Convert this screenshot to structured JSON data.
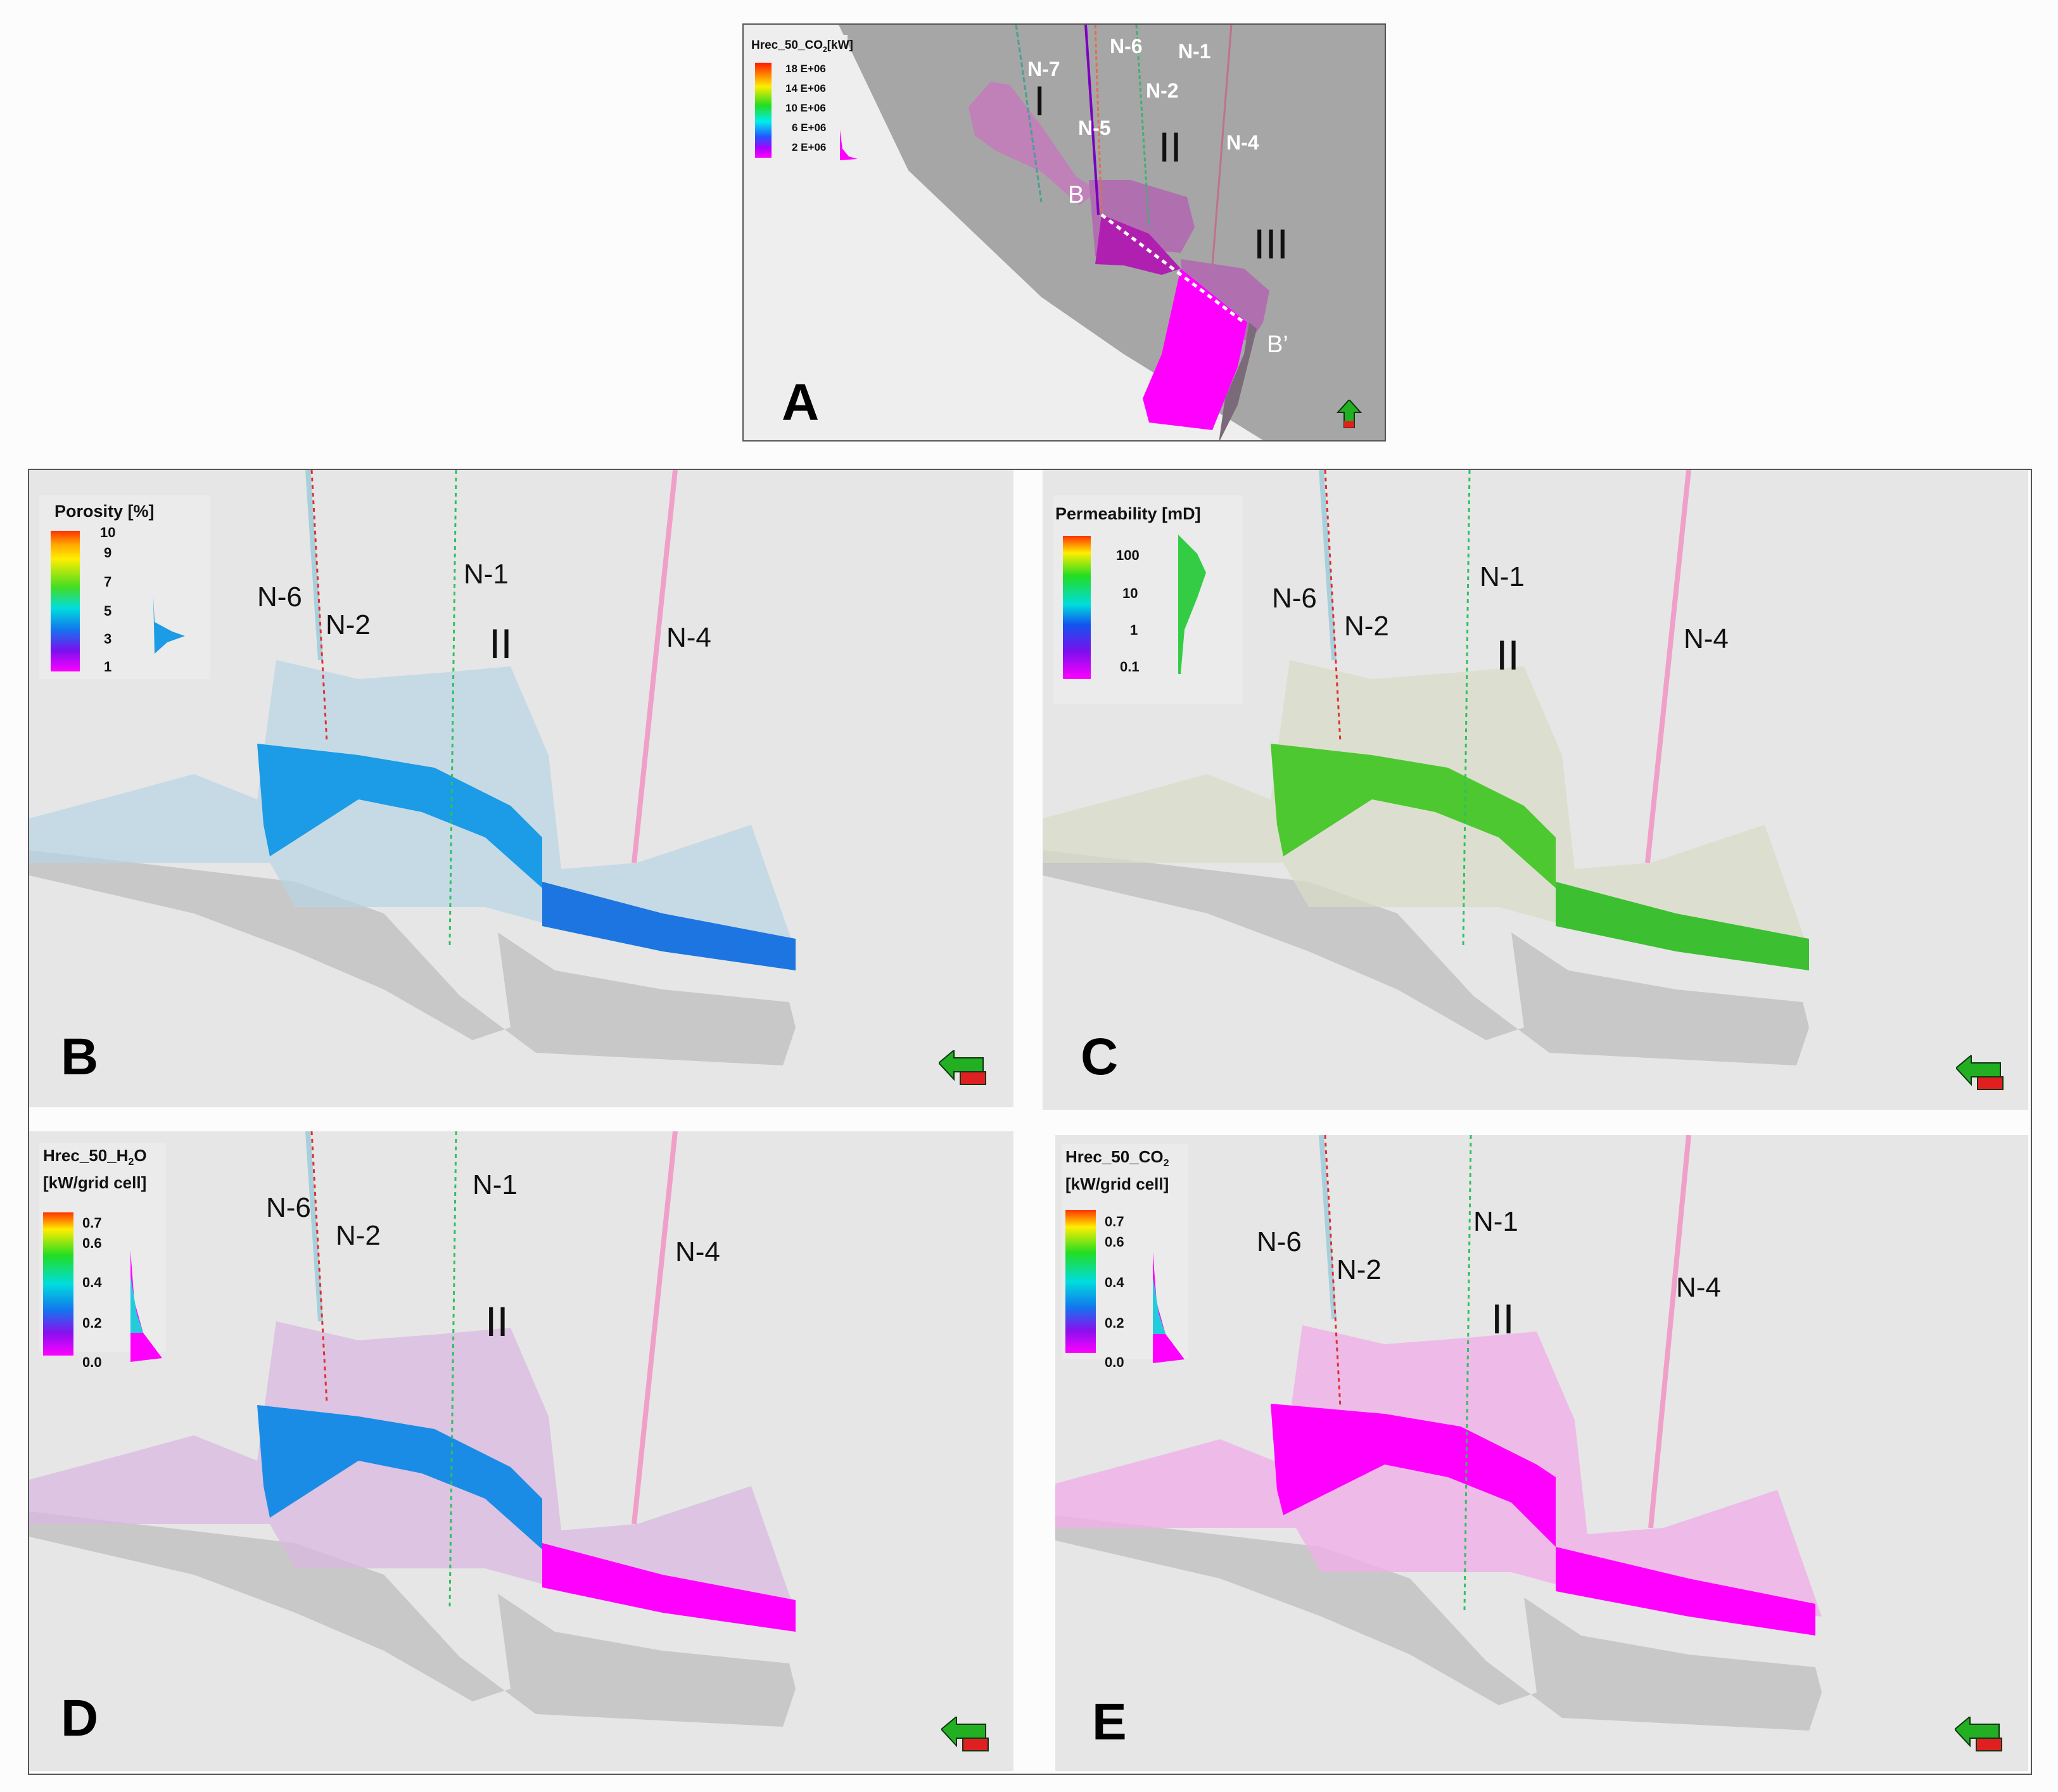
{
  "panels": {
    "A": {
      "letter": "A",
      "legend": {
        "title_pre": "Hrec_50_CO",
        "title_sub": "2",
        "title_post": "[kW]",
        "ticks": [
          "18 E+06",
          "14 E+06",
          "10 E+06",
          "6 E+06",
          "2 E+06"
        ]
      },
      "wells": [
        "N-7",
        "N-6",
        "N-1",
        "N-2",
        "N-5",
        "N-4"
      ],
      "zones": [
        "I",
        "II",
        "III"
      ],
      "section_start": "B",
      "section_end": "B’"
    },
    "B": {
      "letter": "B",
      "legend": {
        "title": "Porosity [%]",
        "ticks": [
          "10",
          "9",
          "7",
          "5",
          "3",
          "1"
        ]
      },
      "wells": [
        "N-6",
        "N-2",
        "N-1",
        "N-4"
      ],
      "zone": "II"
    },
    "C": {
      "letter": "C",
      "legend": {
        "title": "Permeability [mD]",
        "ticks": [
          "100",
          "10",
          "1",
          "0.1"
        ]
      },
      "wells": [
        "N-6",
        "N-2",
        "N-1",
        "N-4"
      ],
      "zone": "II"
    },
    "D": {
      "letter": "D",
      "legend": {
        "title_pre": "Hrec_50_H",
        "title_sub": "2",
        "title_post": "O",
        "title_line2": "[kW/grid cell]",
        "ticks": [
          "0.7",
          "0.6",
          "0.4",
          "0.2",
          "0.0"
        ]
      },
      "wells": [
        "N-6",
        "N-2",
        "N-1",
        "N-4"
      ],
      "zone": "II"
    },
    "E": {
      "letter": "E",
      "legend": {
        "title_pre": "Hrec_50_CO",
        "title_sub": "2",
        "title_post": "",
        "title_line2": "[kW/grid cell]",
        "ticks": [
          "0.7",
          "0.6",
          "0.4",
          "0.2",
          "0.0"
        ]
      },
      "wells": [
        "N-6",
        "N-2",
        "N-1",
        "N-4"
      ],
      "zone": "II"
    }
  },
  "colors": {
    "panel_background": "#e6e6e6",
    "map_dark_gray": "#a6a6a6",
    "magenta": "#ff00ff",
    "orient_green": "#22b022",
    "orient_red": "#e02020"
  }
}
